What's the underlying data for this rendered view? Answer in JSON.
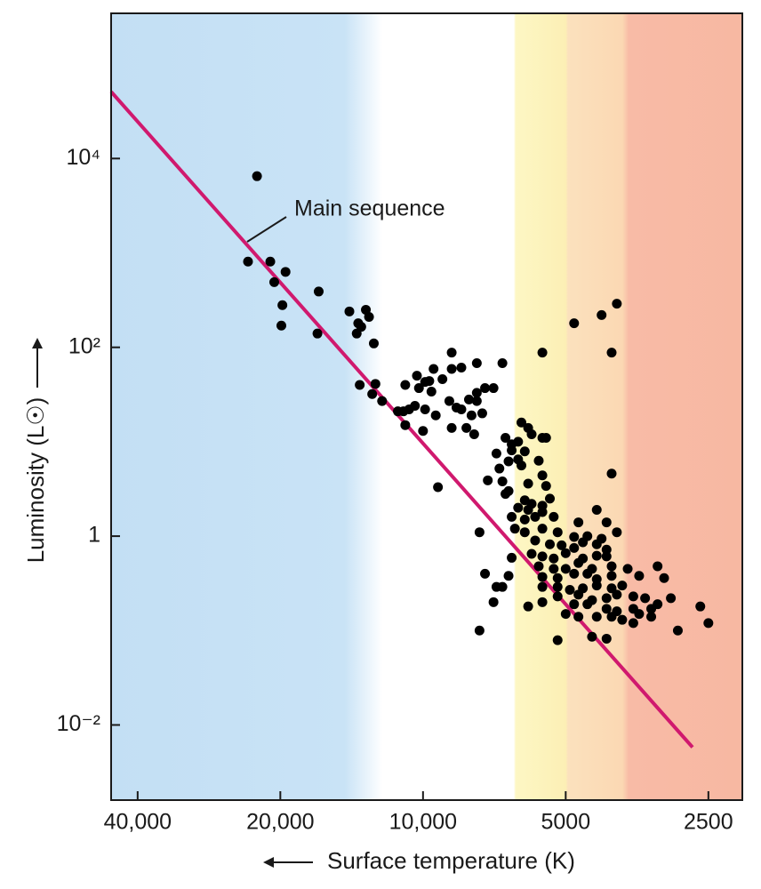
{
  "chart_data": {
    "type": "scatter",
    "xlabel": "Surface temperature (K)",
    "ylabel": "Luminosity (L☉)",
    "xscale": "log",
    "yscale": "log",
    "xlim": [
      45500,
      2120
    ],
    "ylim": [
      0.0016,
      345000
    ],
    "xticks": [
      {
        "value": 40000,
        "label": "40,000"
      },
      {
        "value": 20000,
        "label": "20,000"
      },
      {
        "value": 10000,
        "label": "10,000"
      },
      5000,
      2500
    ],
    "yticks": [
      {
        "value": 0.01,
        "label": "10⁻²"
      },
      1,
      {
        "value": 100,
        "label": "10²"
      },
      {
        "value": 10000,
        "label": "10⁴"
      }
    ],
    "points": {
      "color": "#000000",
      "x": [
        22400,
        23400,
        21000,
        19500,
        20600,
        16600,
        19800,
        14300,
        13200,
        13700,
        13000,
        13500,
        19900,
        16700,
        13800,
        12700,
        13600,
        12600,
        12800,
        12200,
        11300,
        10900,
        10300,
        9900,
        9600,
        10400,
        9900,
        9100,
        8700,
        8300,
        8700,
        9500,
        9700,
        10200,
        11000,
        10700,
        9400,
        8800,
        8500,
        8000,
        7700,
        7400,
        7100,
        7700,
        7500,
        7900,
        8300,
        8700,
        8100,
        7800,
        10900,
        10000,
        7700,
        6800,
        9300,
        7600,
        5600,
        4800,
        4200,
        3900,
        4000,
        6200,
        6000,
        5600,
        5500,
        6700,
        6500,
        6300,
        5900,
        7000,
        6500,
        6100,
        6600,
        6300,
        5700,
        6200,
        6900,
        5600,
        7300,
        6800,
        6600,
        6000,
        5500,
        6700,
        6100,
        5900,
        5600,
        5400,
        6300,
        6000,
        5600,
        6500,
        6100,
        5800,
        5300,
        6400,
        6100,
        5600,
        5200,
        4700,
        4300,
        4000,
        4100,
        4500,
        4800,
        4200,
        3900,
        5800,
        5400,
        5100,
        4800,
        4600,
        4300,
        4100,
        5900,
        5600,
        5300,
        5000,
        4600,
        4300,
        4100,
        6500,
        5700,
        5300,
        5000,
        4700,
        4400,
        4000,
        3700,
        5600,
        5200,
        4800,
        4500,
        4300,
        4000,
        3200,
        3500,
        3100,
        7400,
        6600,
        5600,
        5200,
        4900,
        4600,
        4300,
        4000,
        3800,
        7000,
        5200,
        4700,
        4400,
        4100,
        3900,
        3600,
        3400,
        5600,
        4800,
        4500,
        4100,
        3900,
        3600,
        3500,
        3300,
        3000,
        7100,
        6800,
        5000,
        4700,
        4300,
        4000,
        3800,
        3600,
        3300,
        3200,
        2600,
        2500,
        2900,
        7600,
        5200,
        4400,
        4100,
        6000
      ],
      "y": [
        6500,
        810,
        810,
        630,
        490,
        390,
        280,
        240,
        250,
        180,
        210,
        165,
        170,
        140,
        140,
        110,
        40,
        41,
        32,
        27,
        21,
        40,
        50,
        43,
        34,
        24,
        22,
        46,
        59,
        61,
        88,
        59,
        44,
        37,
        21,
        22,
        19,
        27,
        23,
        28,
        33,
        37,
        37,
        27,
        20,
        19,
        22,
        14,
        14,
        12,
        15,
        13,
        68,
        68,
        3.3,
        1.1,
        88,
        180,
        220,
        290,
        88,
        16,
        14,
        11,
        11,
        11,
        9.4,
        10,
        12,
        7.5,
        8.1,
        7.9,
        6.2,
        6.5,
        6.3,
        5.6,
        5.2,
        4.4,
        3.9,
        3.8,
        3.0,
        3.6,
        3.4,
        2.8,
        2.4,
        2.2,
        2.1,
        2.5,
        2.0,
        1.9,
        1.8,
        1.6,
        1.5,
        1.6,
        1.6,
        1.2,
        1.1,
        1.2,
        1.1,
        1.4,
        1.9,
        4.6,
        1.4,
        1.0,
        0.98,
        0.94,
        1.1,
        0.9,
        0.82,
        0.8,
        0.75,
        0.86,
        0.82,
        0.72,
        0.65,
        0.61,
        0.58,
        0.66,
        0.58,
        0.62,
        0.61,
        0.59,
        0.48,
        0.45,
        0.45,
        0.52,
        0.45,
        0.48,
        0.45,
        0.37,
        0.36,
        0.4,
        0.4,
        0.35,
        0.38,
        0.48,
        0.38,
        0.36,
        0.4,
        0.38,
        0.29,
        0.29,
        0.27,
        0.28,
        0.3,
        0.28,
        0.3,
        0.29,
        0.23,
        0.24,
        0.21,
        0.22,
        0.24,
        0.23,
        0.22,
        0.2,
        0.19,
        0.19,
        0.17,
        0.16,
        0.17,
        0.15,
        0.17,
        0.22,
        0.2,
        0.29,
        0.15,
        0.14,
        0.14,
        0.14,
        0.13,
        0.12,
        0.14,
        0.19,
        0.18,
        0.12,
        0.1,
        0.1,
        0.079,
        0.086,
        0.082,
        0.18
      ]
    },
    "main_sequence": {
      "label": "Main sequence",
      "color": "#d0196e",
      "x": [
        45500,
        2700
      ],
      "y": [
        51000,
        0.0058
      ]
    }
  }
}
